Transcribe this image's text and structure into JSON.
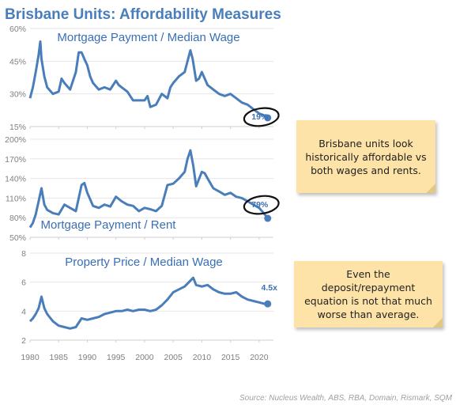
{
  "title": "Brisbane Units: Affordability Measures",
  "source": "Source: Nucleus Wealth, ABS, RBA, Domain, Rismark, SQM",
  "colors": {
    "line": "#4a7ebb",
    "title": "#4a7ebb",
    "note_bg": "#fde3a7"
  },
  "notes": [
    "Brisbane units look historically affordable vs both wages and rents.",
    "Even the deposit/repayment equation is not that much worse than average."
  ],
  "chart_data": [
    {
      "type": "line",
      "title": "Mortgage Payment / Median Wage",
      "x_ticks": [
        1980,
        1985,
        1990,
        1995,
        2000,
        2005,
        2010,
        2015,
        2020
      ],
      "y_ticks": [
        "60%",
        "45%",
        "30%",
        "15%"
      ],
      "ylim": [
        15,
        60
      ],
      "end_label": "19%",
      "series": [
        {
          "x": [
            1980,
            1980.5,
            1981,
            1981.5,
            1981.8,
            1982,
            1982.5,
            1983,
            1984,
            1985,
            1985.5,
            1986,
            1987,
            1988,
            1988.5,
            1989,
            1989.5,
            1990,
            1990.5,
            1991,
            1992,
            1993,
            1994,
            1995,
            1995.5,
            1996,
            1997,
            1998,
            1999,
            2000,
            2000.5,
            2001,
            2002,
            2003,
            2004,
            2004.5,
            2005,
            2006,
            2007,
            2007.5,
            2008,
            2008.4,
            2009,
            2009.5,
            2010,
            2011,
            2012,
            2013,
            2014,
            2015,
            2016,
            2017,
            2018,
            2019,
            2020,
            2021,
            2021.5
          ],
          "y": [
            28,
            33,
            40,
            48,
            54,
            46,
            38,
            33,
            30,
            31,
            37,
            35,
            32,
            40,
            49,
            49,
            46,
            43,
            38,
            35,
            32,
            33,
            32,
            36,
            34,
            33,
            31,
            27,
            27,
            27,
            29,
            24,
            25,
            30,
            28,
            33,
            35,
            38,
            40,
            45,
            50,
            46,
            36,
            37,
            40,
            34,
            32,
            30,
            29,
            30,
            28,
            26,
            25,
            23,
            21,
            20,
            19
          ]
        }
      ]
    },
    {
      "type": "line",
      "title": "Mortgage Payment / Rent",
      "x_ticks": [
        1980,
        1985,
        1990,
        1995,
        2000,
        2005,
        2010,
        2015,
        2020
      ],
      "y_ticks": [
        "200%",
        "170%",
        "140%",
        "110%",
        "80%",
        "50%"
      ],
      "ylim": [
        50,
        200
      ],
      "end_label": "79%",
      "series": [
        {
          "x": [
            1980,
            1980.5,
            1981,
            1981.5,
            1982,
            1982.5,
            1983,
            1984,
            1985,
            1986,
            1987,
            1988,
            1989,
            1989.5,
            1990,
            1991,
            1992,
            1993,
            1994,
            1995,
            1996,
            1997,
            1998,
            1999,
            2000,
            2001,
            2002,
            2003,
            2004,
            2005,
            2006,
            2007,
            2007.5,
            2008,
            2008.5,
            2009,
            2010,
            2010.5,
            2011,
            2012,
            2013,
            2014,
            2015,
            2016,
            2017,
            2018,
            2019,
            2020,
            2021,
            2021.5
          ],
          "y": [
            65,
            72,
            85,
            105,
            125,
            100,
            92,
            87,
            85,
            100,
            95,
            90,
            130,
            133,
            118,
            98,
            95,
            100,
            97,
            112,
            105,
            100,
            98,
            90,
            95,
            93,
            90,
            98,
            130,
            132,
            140,
            150,
            170,
            183,
            160,
            128,
            150,
            148,
            140,
            125,
            120,
            115,
            118,
            112,
            110,
            105,
            100,
            95,
            85,
            79
          ]
        }
      ]
    },
    {
      "type": "line",
      "title": "Property Price / Median Wage",
      "x_ticks": [
        1980,
        1985,
        1990,
        1995,
        2000,
        2005,
        2010,
        2015,
        2020
      ],
      "x_tick_labels": [
        "1980",
        "1985",
        "1990",
        "1995",
        "2000",
        "2005",
        "2010",
        "2015",
        "2020"
      ],
      "y_ticks": [
        "8",
        "6",
        "4",
        "2"
      ],
      "ylim": [
        2,
        8
      ],
      "end_label": "4.5x",
      "series": [
        {
          "x": [
            1980,
            1980.5,
            1981,
            1981.5,
            1982,
            1982.5,
            1983,
            1984,
            1985,
            1986,
            1987,
            1988,
            1989,
            1990,
            1991,
            1992,
            1993,
            1994,
            1995,
            1996,
            1997,
            1998,
            1999,
            2000,
            2001,
            2002,
            2003,
            2004,
            2005,
            2006,
            2007,
            2008,
            2008.5,
            2009,
            2010,
            2011,
            2012,
            2013,
            2014,
            2015,
            2016,
            2017,
            2018,
            2019,
            2020,
            2021,
            2021.5
          ],
          "y": [
            3.3,
            3.5,
            3.8,
            4.2,
            5.0,
            4.2,
            3.8,
            3.3,
            3.0,
            2.9,
            2.8,
            2.9,
            3.5,
            3.4,
            3.5,
            3.6,
            3.8,
            3.9,
            4.0,
            4.0,
            4.1,
            4.0,
            4.1,
            4.1,
            4.0,
            4.1,
            4.4,
            4.8,
            5.3,
            5.5,
            5.7,
            6.1,
            6.3,
            5.8,
            5.7,
            5.8,
            5.5,
            5.3,
            5.2,
            5.2,
            5.3,
            5.0,
            4.8,
            4.7,
            4.6,
            4.5,
            4.5
          ]
        }
      ]
    }
  ]
}
